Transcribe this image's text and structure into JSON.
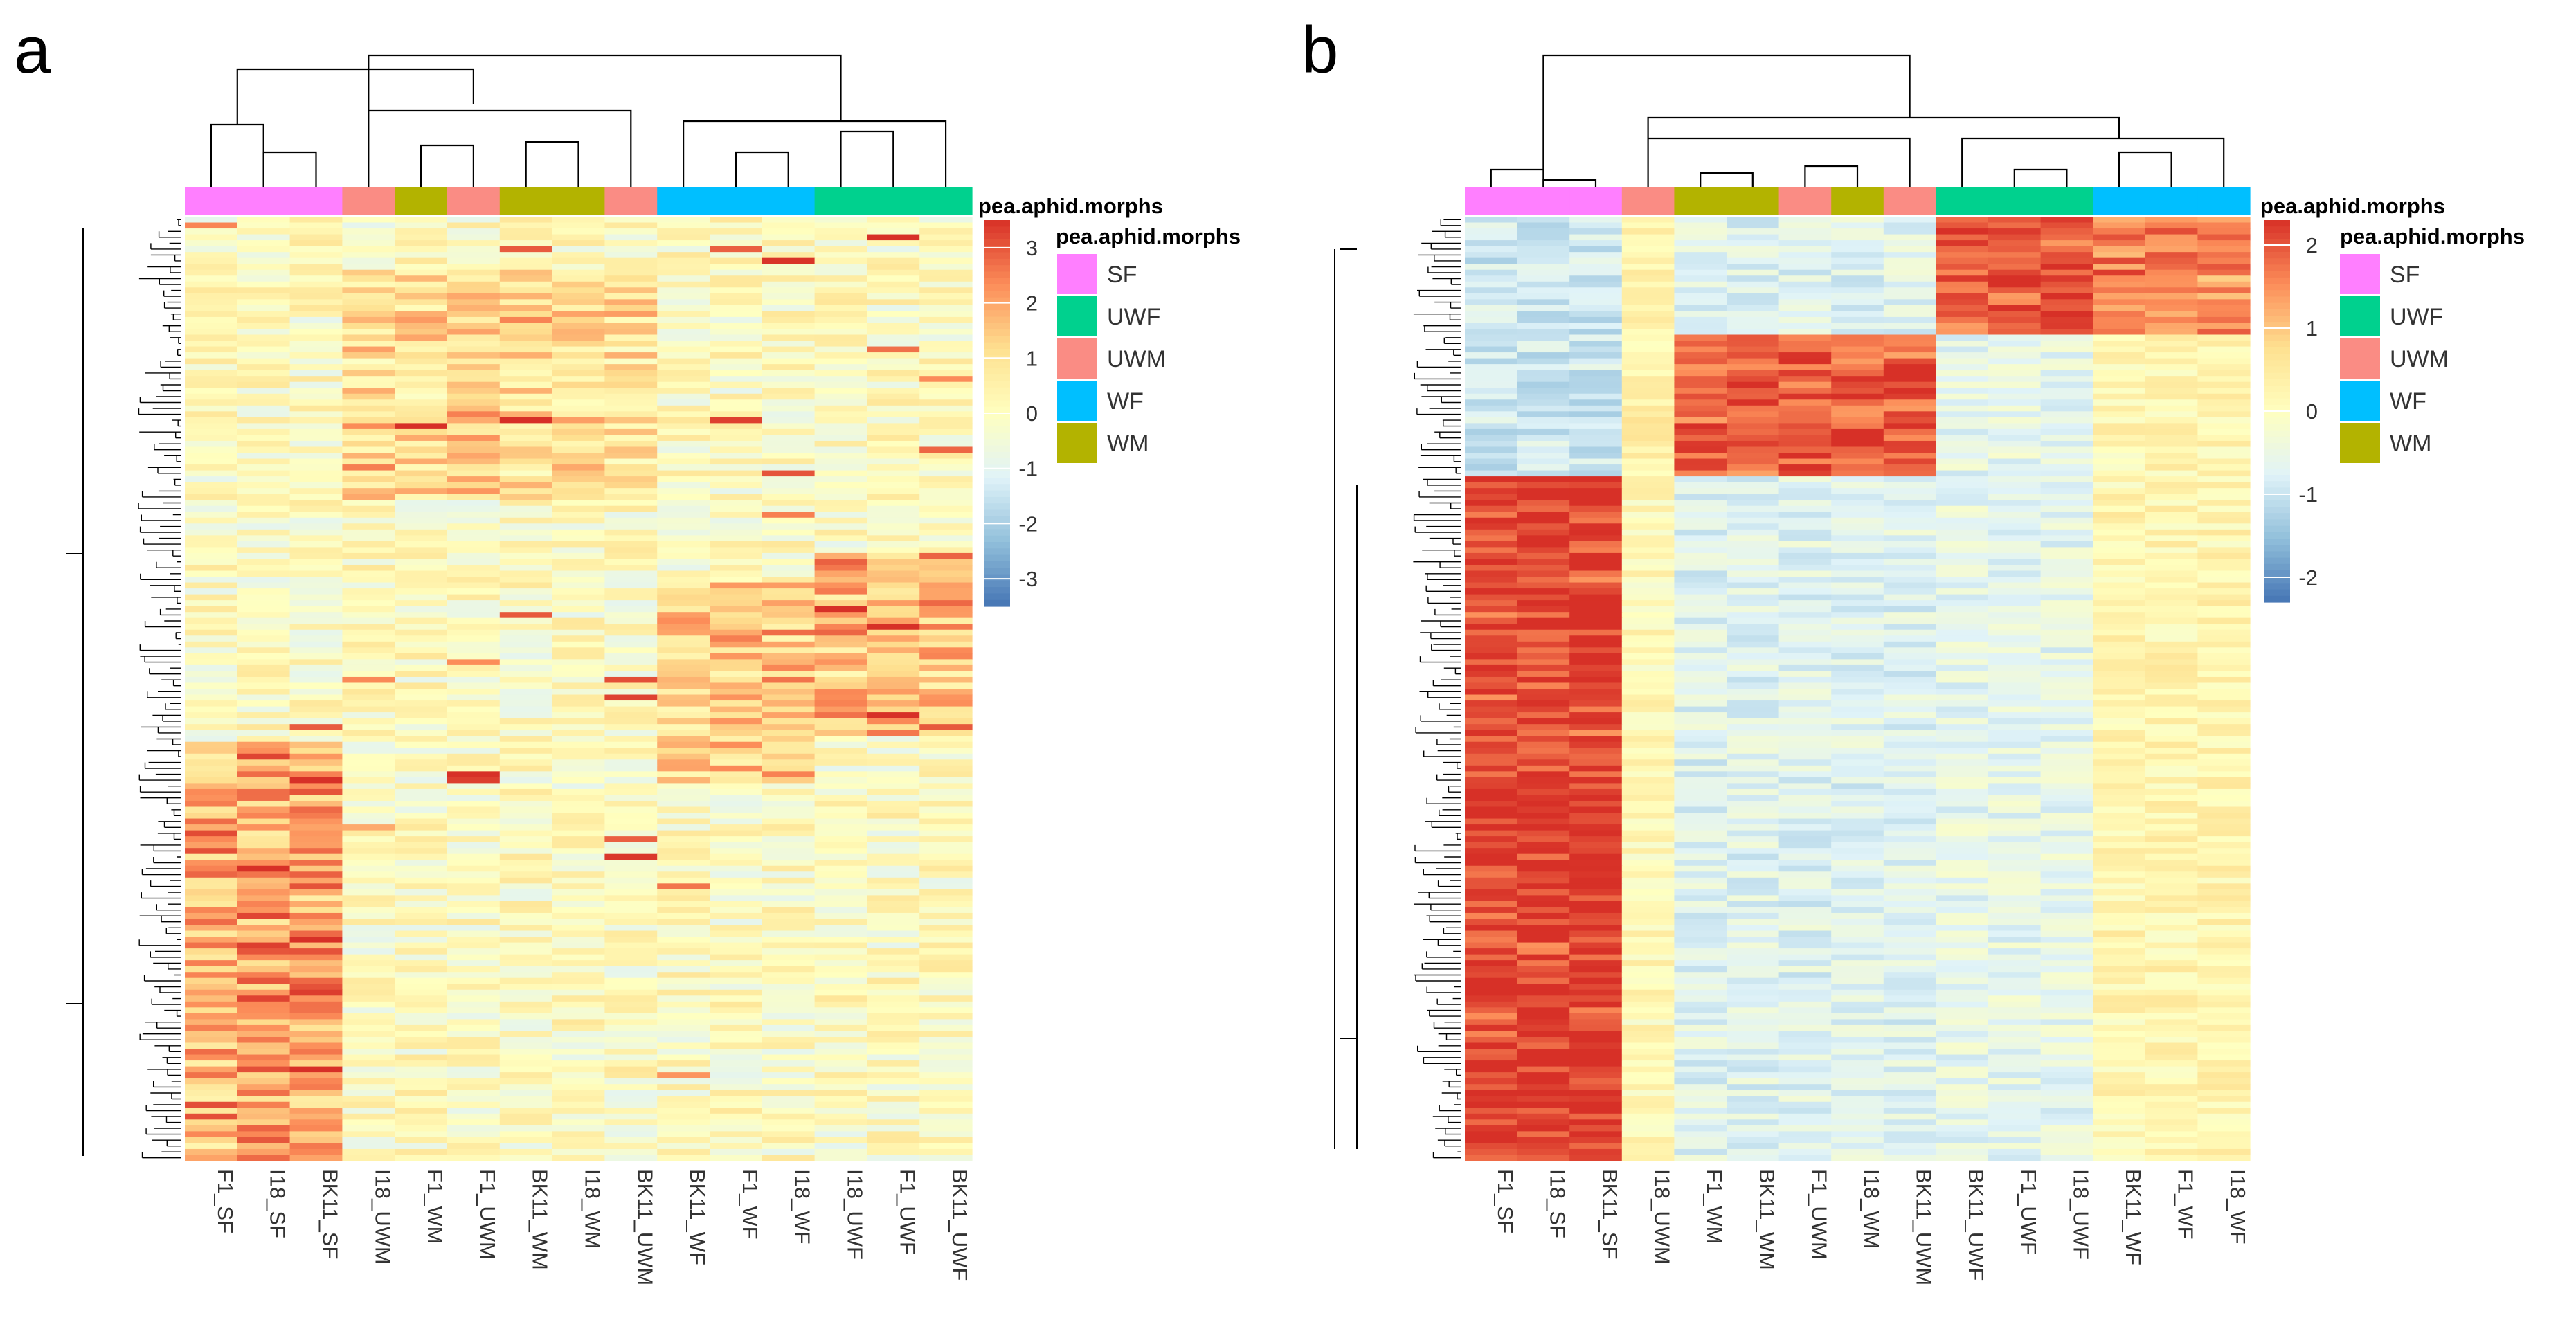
{
  "figure": {
    "panels": [
      "a",
      "b"
    ]
  },
  "chart_data": [
    {
      "type": "heatmap",
      "panel_label": "a",
      "columns": [
        "F1_SF",
        "I18_SF",
        "BK11_SF",
        "I18_UWM",
        "F1_WM",
        "F1_UWM",
        "BK11_WM",
        "I18_WM",
        "BK11_UWM",
        "BK11_WF",
        "F1_WF",
        "I18_WF",
        "I18_UWF",
        "F1_UWF",
        "BK11_UWF"
      ],
      "column_groups": [
        "SF",
        "SF",
        "SF",
        "UWM",
        "WM",
        "UWM",
        "WM",
        "WM",
        "UWM",
        "WF",
        "WF",
        "WF",
        "UWF",
        "UWF",
        "UWF"
      ],
      "annotation_title": "pea.aphid.morphs",
      "legend_title": "pea.aphid.morphs",
      "legend": [
        {
          "name": "SF",
          "color": "#FF7FFF"
        },
        {
          "name": "UWF",
          "color": "#00D18E"
        },
        {
          "name": "UWM",
          "color": "#FA8C84"
        },
        {
          "name": "WF",
          "color": "#00BFFF"
        },
        {
          "name": "WM",
          "color": "#B3B300"
        }
      ],
      "colorbar": {
        "min": -3.5,
        "max": 3.5,
        "ticks": [
          3,
          2,
          1,
          0,
          -1,
          -2,
          -3
        ],
        "colors": [
          "#4575B4",
          "#91BFDB",
          "#E0F3F8",
          "#FFFFBF",
          "#FEE090",
          "#FC8D59",
          "#D73027"
        ]
      },
      "rows": 160,
      "row_dendrogram": true,
      "col_dendrogram": true
    },
    {
      "type": "heatmap",
      "panel_label": "b",
      "columns": [
        "F1_SF",
        "I18_SF",
        "BK11_SF",
        "I18_UWM",
        "F1_WM",
        "BK11_WM",
        "F1_UWM",
        "I18_WM",
        "BK11_UWM",
        "BK11_UWF",
        "F1_UWF",
        "I18_UWF",
        "BK11_WF",
        "F1_WF",
        "I18_WF"
      ],
      "column_groups": [
        "SF",
        "SF",
        "SF",
        "UWM",
        "WM",
        "WM",
        "UWM",
        "WM",
        "UWM",
        "UWF",
        "UWF",
        "UWF",
        "WF",
        "WF",
        "WF"
      ],
      "annotation_title": "pea.aphid.morphs",
      "legend_title": "pea.aphid.morphs",
      "legend": [
        {
          "name": "SF",
          "color": "#FF7FFF"
        },
        {
          "name": "UWF",
          "color": "#00D18E"
        },
        {
          "name": "UWM",
          "color": "#FA8C84"
        },
        {
          "name": "WF",
          "color": "#00BFFF"
        },
        {
          "name": "WM",
          "color": "#B3B300"
        }
      ],
      "colorbar": {
        "min": -2.3,
        "max": 2.3,
        "ticks": [
          2,
          1,
          0,
          -1,
          -2
        ],
        "colors": [
          "#4575B4",
          "#91BFDB",
          "#E0F3F8",
          "#FFFFBF",
          "#FEE090",
          "#FC8D59",
          "#D73027"
        ]
      },
      "rows": 160,
      "row_dendrogram": true,
      "col_dendrogram": true
    }
  ]
}
